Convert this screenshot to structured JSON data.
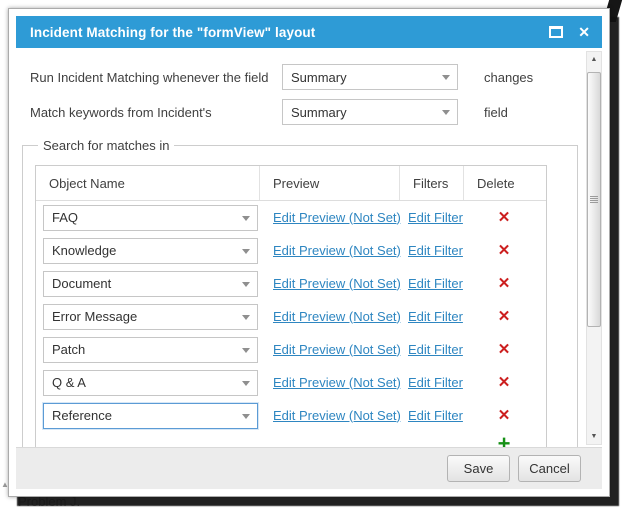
{
  "window": {
    "title": "Incident Matching for the \"formView\" layout"
  },
  "settings": {
    "rows": [
      {
        "label": "Run Incident Matching whenever the field",
        "value": "Summary",
        "suffix": "changes"
      },
      {
        "label": "Match keywords from Incident's",
        "value": "Summary",
        "suffix": "field"
      }
    ]
  },
  "search_section": {
    "legend": "Search for matches in",
    "table": {
      "headers": [
        "Object Name",
        "Preview",
        "Filters",
        "Delete"
      ],
      "rows": [
        {
          "object_name": "FAQ",
          "preview_link": "Edit Preview (Not Set)",
          "filter_link": "Edit Filter"
        },
        {
          "object_name": "Knowledge",
          "preview_link": "Edit Preview (Not Set)",
          "filter_link": "Edit Filter"
        },
        {
          "object_name": "Document",
          "preview_link": "Edit Preview (Not Set)",
          "filter_link": "Edit Filter"
        },
        {
          "object_name": "Error Message",
          "preview_link": "Edit Preview (Not Set)",
          "filter_link": "Edit Filter"
        },
        {
          "object_name": "Patch",
          "preview_link": "Edit Preview (Not Set)",
          "filter_link": "Edit Filter"
        },
        {
          "object_name": "Q & A",
          "preview_link": "Edit Preview (Not Set)",
          "filter_link": "Edit Filter"
        },
        {
          "object_name": "Reference",
          "preview_link": "Edit Preview (Not Set)",
          "filter_link": "Edit Filter",
          "focused": true
        }
      ]
    }
  },
  "footer": {
    "save_label": "Save",
    "cancel_label": "Cancel"
  },
  "icons": {
    "close": "✕",
    "delete": "✕",
    "add": "+",
    "scroll_up": "▲",
    "scroll_down": "▼"
  },
  "background": {
    "partial_text": "Problem J."
  },
  "colors": {
    "titlebar_blue": "#2e9bd6",
    "link_blue": "#2e86c1",
    "delete_red": "#cc1f1f",
    "add_green": "#169016",
    "focus_border": "#5b9bd5",
    "footer_bg": "#ececec"
  }
}
